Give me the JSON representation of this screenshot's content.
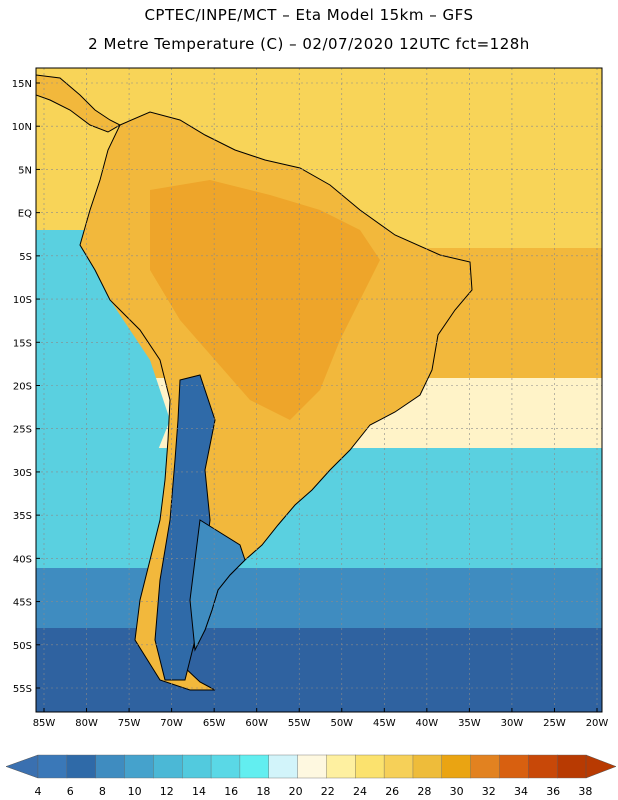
{
  "header": {
    "title_line1": "CPTEC/INPE/MCT –  Eta Model 15km – GFS",
    "title_line2": "2 Metre Temperature (C) – 02/07/2020 12UTC fct=128h"
  },
  "axes": {
    "lat_labels": [
      "15N",
      "10N",
      "5N",
      "EQ",
      "5S",
      "10S",
      "15S",
      "20S",
      "25S",
      "30S",
      "35S",
      "40S",
      "45S",
      "50S",
      "55S"
    ],
    "lon_labels": [
      "85W",
      "80W",
      "75W",
      "70W",
      "65W",
      "60W",
      "55W",
      "50W",
      "45W",
      "40W",
      "35W",
      "30W",
      "25W",
      "20W"
    ]
  },
  "colorbar": {
    "labels": [
      "4",
      "6",
      "8",
      "10",
      "12",
      "14",
      "16",
      "18",
      "20",
      "22",
      "24",
      "26",
      "28",
      "30",
      "32",
      "34",
      "36",
      "38"
    ],
    "colors": [
      "#3a78b8",
      "#2f6aa8",
      "#3f8cc0",
      "#45a2cc",
      "#4bb8d6",
      "#52cade",
      "#5ad8e6",
      "#62eef0",
      "#d2f4fa",
      "#fef8e0",
      "#fef0a0",
      "#fbe26e",
      "#f6d058",
      "#eebc3a",
      "#eaa412",
      "#e28220",
      "#d86010",
      "#c84808",
      "#b83a02"
    ],
    "left_arrow_color": "#3a70b0",
    "right_arrow_color": "#b83a02"
  },
  "map": {
    "ocean_colors": {
      "tropical": "#f8d458",
      "subtropical": "#fff3c8",
      "cool": "#5ad0e0",
      "cold": "#3f8cc0",
      "coldest": "#2f62a0"
    },
    "land_colors": {
      "hot": "#eea52a",
      "warm": "#f2b83c",
      "andes": "#2f6aa8",
      "patagonia": "#3f8cc0"
    }
  }
}
